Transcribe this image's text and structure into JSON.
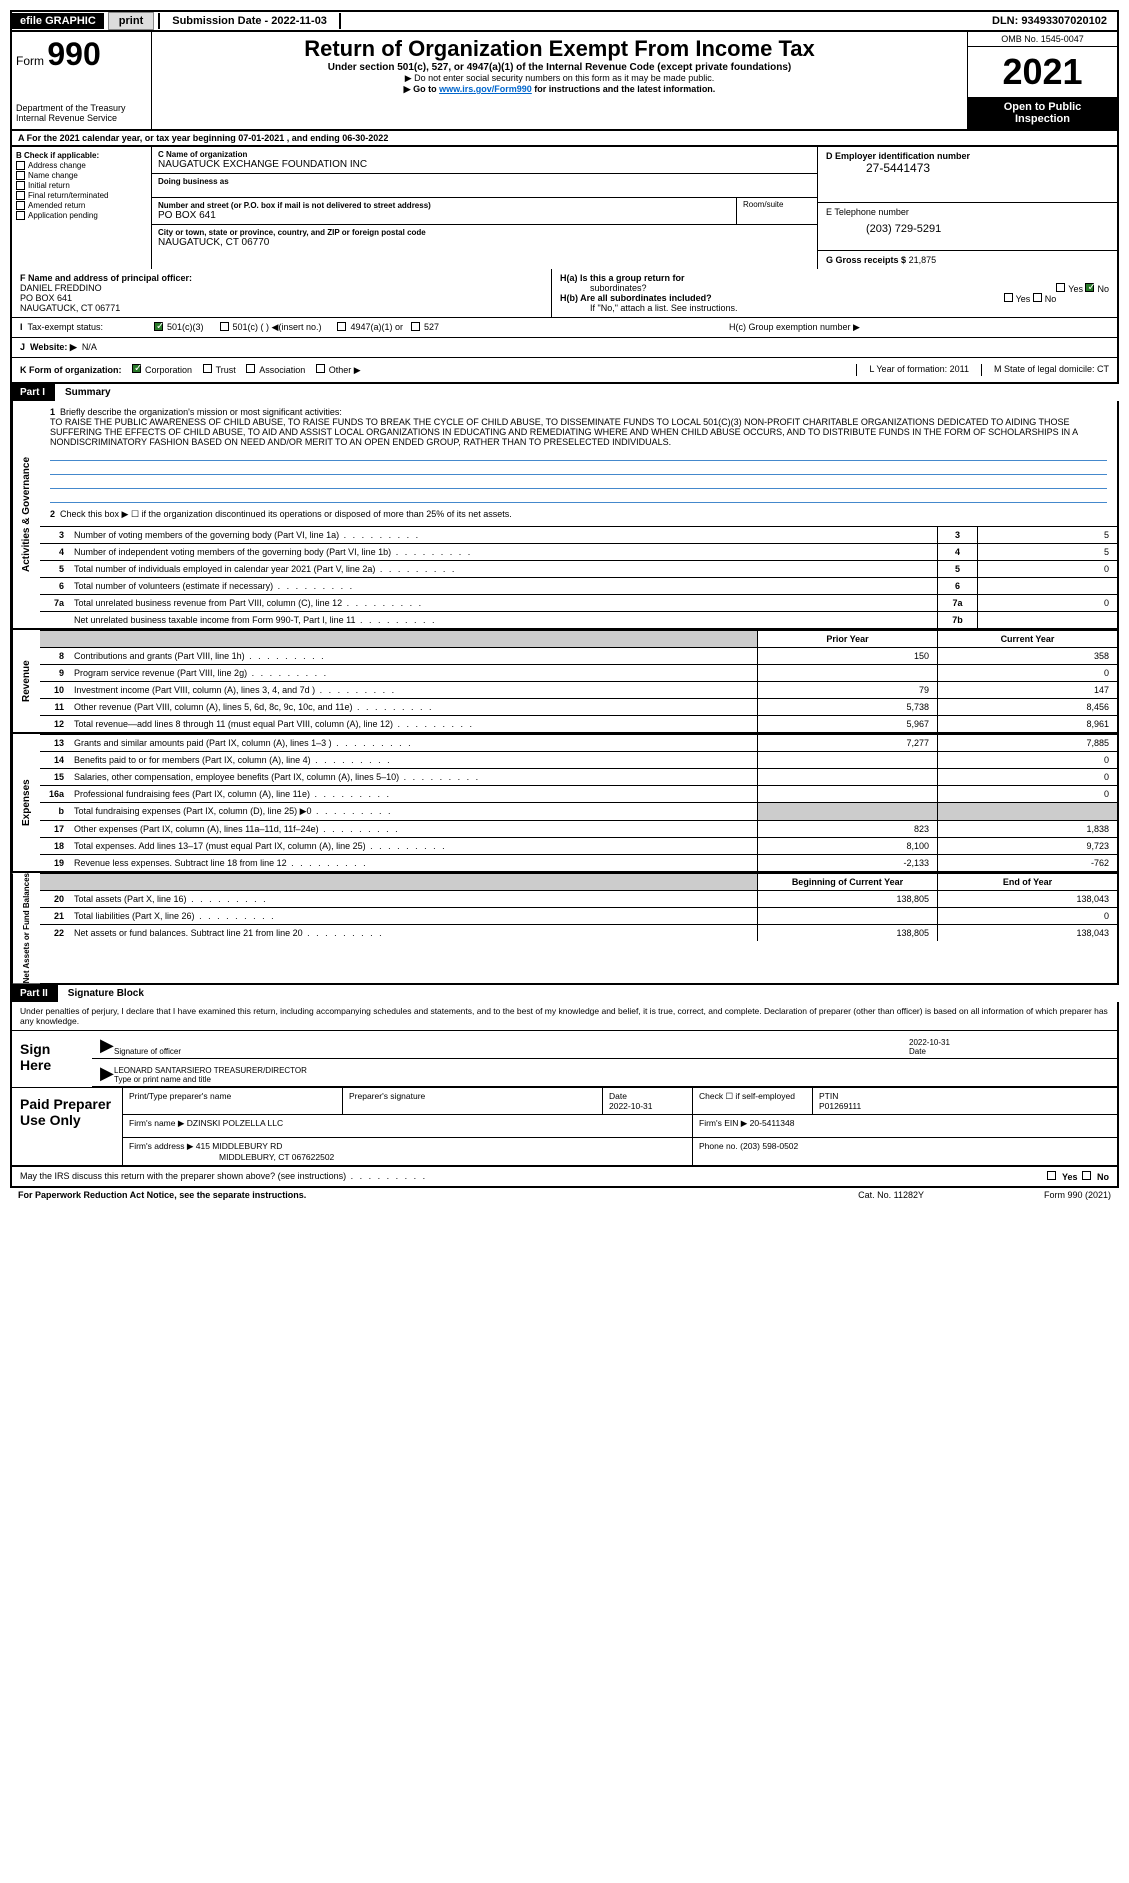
{
  "topbar": {
    "efile": "efile GRAPHIC",
    "print": "print",
    "subdate_label": "Submission Date - 2022-11-03",
    "dln": "DLN: 93493307020102"
  },
  "header": {
    "form_prefix": "Form",
    "form_num": "990",
    "title": "Return of Organization Exempt From Income Tax",
    "sub1": "Under section 501(c), 527, or 4947(a)(1) of the Internal Revenue Code (except private foundations)",
    "sub2": "▶ Do not enter social security numbers on this form as it may be made public.",
    "sub3_pre": "▶ Go to ",
    "sub3_link": "www.irs.gov/Form990",
    "sub3_post": " for instructions and the latest information.",
    "dept": "Department of the Treasury",
    "irs": "Internal Revenue Service",
    "omb": "OMB No. 1545-0047",
    "year": "2021",
    "inspect1": "Open to Public",
    "inspect2": "Inspection"
  },
  "row_a": "A For the 2021 calendar year, or tax year beginning 07-01-2021   , and ending 06-30-2022",
  "col_b": {
    "title": "B Check if applicable:",
    "opts": [
      "Address change",
      "Name change",
      "Initial return",
      "Final return/terminated",
      "Amended return",
      "Application pending"
    ]
  },
  "org": {
    "name_label": "C Name of organization",
    "name": "NAUGATUCK EXCHANGE FOUNDATION INC",
    "dba_label": "Doing business as",
    "addr_label": "Number and street (or P.O. box if mail is not delivered to street address)",
    "addr": "PO BOX 641",
    "room_label": "Room/suite",
    "city_label": "City or town, state or province, country, and ZIP or foreign postal code",
    "city": "NAUGATUCK, CT  06770"
  },
  "right": {
    "d_label": "D Employer identification number",
    "ein": "27-5441473",
    "e_label": "E Telephone number",
    "phone": "(203) 729-5291",
    "g_label": "G Gross receipts $",
    "g_val": "21,875"
  },
  "f": {
    "label": "F  Name and address of principal officer:",
    "name": "DANIEL FREDDINO",
    "addr": "PO BOX 641",
    "city": "NAUGATUCK, CT  06771"
  },
  "h": {
    "ha": "H(a)  Is this a group return for",
    "ha2": "subordinates?",
    "hb": "H(b)  Are all subordinates included?",
    "hb2": "If \"No,\" attach a list. See instructions.",
    "hc": "H(c)  Group exemption number ▶",
    "yes": "Yes",
    "no": "No"
  },
  "tax": {
    "i": "I",
    "label": "Tax-exempt status:",
    "opt1": "501(c)(3)",
    "opt2": "501(c) (  ) ◀(insert no.)",
    "opt3": "4947(a)(1) or",
    "opt4": "527"
  },
  "web": {
    "j": "J",
    "label": "Website: ▶",
    "val": "N/A"
  },
  "k": {
    "label": "K Form of organization:",
    "corp": "Corporation",
    "trust": "Trust",
    "assoc": "Association",
    "other": "Other ▶",
    "l": "L Year of formation: 2011",
    "m": "M State of legal domicile: CT"
  },
  "part1": {
    "hdr": "Part I",
    "title": "Summary",
    "side_gov": "Activities & Governance",
    "side_rev": "Revenue",
    "side_exp": "Expenses",
    "side_net": "Net Assets or Fund Balances",
    "q1": "Briefly describe the organization's mission or most significant activities:",
    "mission": "TO RAISE THE PUBLIC AWARENESS OF CHILD ABUSE, TO RAISE FUNDS TO BREAK THE CYCLE OF CHILD ABUSE, TO DISSEMINATE FUNDS TO LOCAL 501(C)(3) NON-PROFIT CHARITABLE ORGANIZATIONS DEDICATED TO AIDING THOSE SUFFERING THE EFFECTS OF CHILD ABUSE, TO AID AND ASSIST LOCAL ORGANIZATIONS IN EDUCATING AND REMEDIATING WHERE AND WHEN CHILD ABUSE OCCURS, AND TO DISTRIBUTE FUNDS IN THE FORM OF SCHOLARSHIPS IN A NONDISCRIMINATORY FASHION BASED ON NEED AND/OR MERIT TO AN OPEN ENDED GROUP, RATHER THAN TO PRESELECTED INDIVIDUALS.",
    "q2": "Check this box ▶ ☐ if the organization discontinued its operations or disposed of more than 25% of its net assets.",
    "rows": [
      {
        "n": "3",
        "t": "Number of voting members of the governing body (Part VI, line 1a)",
        "box": "3",
        "v": "5"
      },
      {
        "n": "4",
        "t": "Number of independent voting members of the governing body (Part VI, line 1b)",
        "box": "4",
        "v": "5"
      },
      {
        "n": "5",
        "t": "Total number of individuals employed in calendar year 2021 (Part V, line 2a)",
        "box": "5",
        "v": "0"
      },
      {
        "n": "6",
        "t": "Total number of volunteers (estimate if necessary)",
        "box": "6",
        "v": ""
      },
      {
        "n": "7a",
        "t": "Total unrelated business revenue from Part VIII, column (C), line 12",
        "box": "7a",
        "v": "0"
      },
      {
        "n": "",
        "t": "Net unrelated business taxable income from Form 990-T, Part I, line 11",
        "box": "7b",
        "v": ""
      }
    ],
    "prior": "Prior Year",
    "current": "Current Year",
    "fin": [
      {
        "n": "8",
        "t": "Contributions and grants (Part VIII, line 1h)",
        "p": "150",
        "c": "358"
      },
      {
        "n": "9",
        "t": "Program service revenue (Part VIII, line 2g)",
        "p": "",
        "c": "0"
      },
      {
        "n": "10",
        "t": "Investment income (Part VIII, column (A), lines 3, 4, and 7d )",
        "p": "79",
        "c": "147"
      },
      {
        "n": "11",
        "t": "Other revenue (Part VIII, column (A), lines 5, 6d, 8c, 9c, 10c, and 11e)",
        "p": "5,738",
        "c": "8,456"
      },
      {
        "n": "12",
        "t": "Total revenue—add lines 8 through 11 (must equal Part VIII, column (A), line 12)",
        "p": "5,967",
        "c": "8,961"
      },
      {
        "n": "13",
        "t": "Grants and similar amounts paid (Part IX, column (A), lines 1–3 )",
        "p": "7,277",
        "c": "7,885"
      },
      {
        "n": "14",
        "t": "Benefits paid to or for members (Part IX, column (A), line 4)",
        "p": "",
        "c": "0"
      },
      {
        "n": "15",
        "t": "Salaries, other compensation, employee benefits (Part IX, column (A), lines 5–10)",
        "p": "",
        "c": "0"
      },
      {
        "n": "16a",
        "t": "Professional fundraising fees (Part IX, column (A), line 11e)",
        "p": "",
        "c": "0"
      },
      {
        "n": "b",
        "t": "Total fundraising expenses (Part IX, column (D), line 25) ▶0",
        "p": "grey",
        "c": "grey"
      },
      {
        "n": "17",
        "t": "Other expenses (Part IX, column (A), lines 11a–11d, 11f–24e)",
        "p": "823",
        "c": "1,838"
      },
      {
        "n": "18",
        "t": "Total expenses. Add lines 13–17 (must equal Part IX, column (A), line 25)",
        "p": "8,100",
        "c": "9,723"
      },
      {
        "n": "19",
        "t": "Revenue less expenses. Subtract line 18 from line 12",
        "p": "-2,133",
        "c": "-762"
      }
    ],
    "begin": "Beginning of Current Year",
    "end": "End of Year",
    "net": [
      {
        "n": "20",
        "t": "Total assets (Part X, line 16)",
        "p": "138,805",
        "c": "138,043"
      },
      {
        "n": "21",
        "t": "Total liabilities (Part X, line 26)",
        "p": "",
        "c": "0"
      },
      {
        "n": "22",
        "t": "Net assets or fund balances. Subtract line 21 from line 20",
        "p": "138,805",
        "c": "138,043"
      }
    ]
  },
  "part2": {
    "hdr": "Part II",
    "title": "Signature Block",
    "intro": "Under penalties of perjury, I declare that I have examined this return, including accompanying schedules and statements, and to the best of my knowledge and belief, it is true, correct, and complete. Declaration of preparer (other than officer) is based on all information of which preparer has any knowledge.",
    "sign": "Sign Here",
    "sig_officer": "Signature of officer",
    "sig_date": "2022-10-31",
    "date_lbl": "Date",
    "sig_name": "LEONARD SANTARSIERO  TREASURER/DIRECTOR",
    "sig_name_lbl": "Type or print name and title",
    "paid": "Paid Preparer Use Only",
    "prep_name_lbl": "Print/Type preparer's name",
    "prep_sig_lbl": "Preparer's signature",
    "prep_date_lbl": "Date",
    "prep_date": "2022-10-31",
    "prep_check": "Check ☐ if self-employed",
    "ptin_lbl": "PTIN",
    "ptin": "P01269111",
    "firm_name_lbl": "Firm's name    ▶",
    "firm_name": "DZINSKI POLZELLA LLC",
    "firm_ein_lbl": "Firm's EIN ▶",
    "firm_ein": "20-5411348",
    "firm_addr_lbl": "Firm's address ▶",
    "firm_addr": "415 MIDDLEBURY RD",
    "firm_city": "MIDDLEBURY, CT  067622502",
    "firm_phone_lbl": "Phone no.",
    "firm_phone": "(203) 598-0502"
  },
  "footer": {
    "discuss": "May the IRS discuss this return with the preparer shown above? (see instructions)",
    "yes": "Yes",
    "no": "No",
    "pra": "For Paperwork Reduction Act Notice, see the separate instructions.",
    "cat": "Cat. No. 11282Y",
    "form": "Form 990 (2021)"
  }
}
